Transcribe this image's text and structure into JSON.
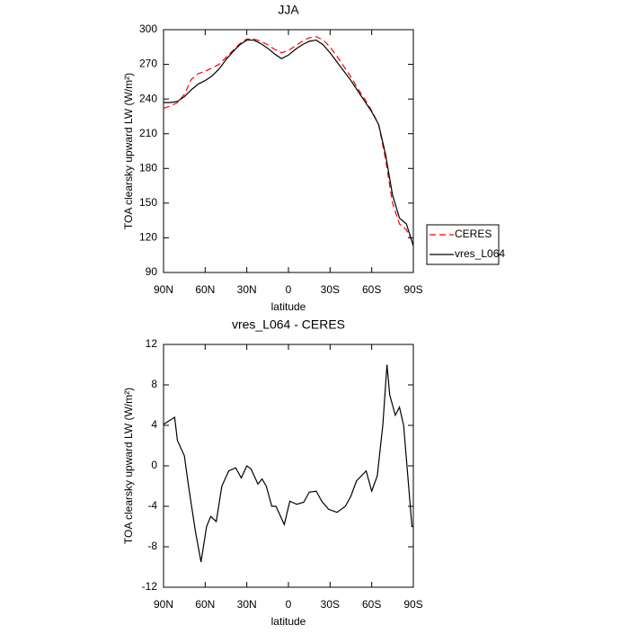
{
  "chart_data": [
    {
      "type": "line",
      "title": "JJA",
      "xlabel": "latitude",
      "ylabel": "TOA clearsky upward LW (W/m²)",
      "x": [
        90,
        85,
        80,
        75,
        70,
        65,
        60,
        55,
        50,
        45,
        40,
        35,
        30,
        25,
        20,
        15,
        10,
        5,
        0,
        -5,
        -10,
        -15,
        -20,
        -25,
        -30,
        -35,
        -40,
        -45,
        -50,
        -55,
        -60,
        -65,
        -70,
        -75,
        -80,
        -85,
        -90
      ],
      "series": [
        {
          "name": "CERES",
          "color": "#ff0000",
          "line_style": "dashed",
          "values": [
            232,
            234,
            237,
            244,
            257,
            262,
            264,
            267,
            270,
            276,
            282,
            288,
            292,
            292,
            290,
            287,
            283,
            280,
            282,
            286,
            290,
            293,
            294,
            291,
            285,
            277,
            268,
            259,
            249,
            240,
            230,
            218,
            188,
            150,
            132,
            127,
            115
          ]
        },
        {
          "name": "vres_L064",
          "color": "#000000",
          "line_style": "solid",
          "values": [
            237,
            237,
            238,
            242,
            248,
            253,
            256,
            260,
            266,
            274,
            281,
            287,
            291,
            291,
            288,
            284,
            279,
            275,
            278,
            283,
            287,
            290,
            291,
            287,
            280,
            272,
            264,
            256,
            247,
            238,
            229,
            218,
            192,
            157,
            137,
            132,
            113
          ]
        }
      ],
      "xlim": [
        90,
        -90
      ],
      "xticks": [
        {
          "value": 90,
          "label": "90N"
        },
        {
          "value": 60,
          "label": "60N"
        },
        {
          "value": 30,
          "label": "30N"
        },
        0,
        {
          "value": -30,
          "label": "30S"
        },
        {
          "value": -60,
          "label": "60S"
        },
        {
          "value": -90,
          "label": "90S"
        }
      ],
      "ylim": [
        90,
        300
      ],
      "yticks": [
        90,
        120,
        150,
        180,
        210,
        240,
        270,
        300
      ],
      "grid": false,
      "legend": "right"
    },
    {
      "type": "line",
      "title": "vres_L064 - CERES",
      "xlabel": "latitude",
      "ylabel": "TOA clearsky upward LW (W/m²)",
      "x": [
        90,
        82,
        80,
        75,
        72,
        67,
        63,
        59,
        56,
        52,
        48,
        43,
        38,
        34,
        30,
        27,
        22,
        19,
        16,
        12,
        9,
        3,
        -1,
        -6,
        -11,
        -15,
        -20,
        -24,
        -29,
        -35,
        -41,
        -45,
        -49,
        -56,
        -60,
        -64,
        -68,
        -71,
        -73,
        -77,
        -80,
        -83,
        -89,
        -90
      ],
      "values": [
        4.1,
        4.8,
        2.5,
        1,
        -2,
        -6.5,
        -9.5,
        -6,
        -5,
        -5.5,
        -2,
        -0.5,
        -0.2,
        -1.2,
        0,
        -0.3,
        -1.8,
        -1.3,
        -2,
        -4,
        -4,
        -5.8,
        -3.5,
        -3.8,
        -3.6,
        -2.6,
        -2.5,
        -3.5,
        -4.3,
        -4.6,
        -4,
        -3,
        -1.5,
        -0.5,
        -2.5,
        -1,
        4,
        10,
        7,
        5,
        5.8,
        4,
        -6,
        -6
      ],
      "color": "#000000",
      "xlim": [
        90,
        -90
      ],
      "xticks": [
        {
          "value": 90,
          "label": "90N"
        },
        {
          "value": 60,
          "label": "60N"
        },
        {
          "value": 30,
          "label": "30N"
        },
        0,
        {
          "value": -30,
          "label": "30S"
        },
        {
          "value": -60,
          "label": "60S"
        },
        {
          "value": -90,
          "label": "90S"
        }
      ],
      "ylim": [
        -12,
        12
      ],
      "yticks": [
        12,
        8,
        4,
        0,
        -4,
        -8,
        -12
      ],
      "grid": false
    }
  ]
}
